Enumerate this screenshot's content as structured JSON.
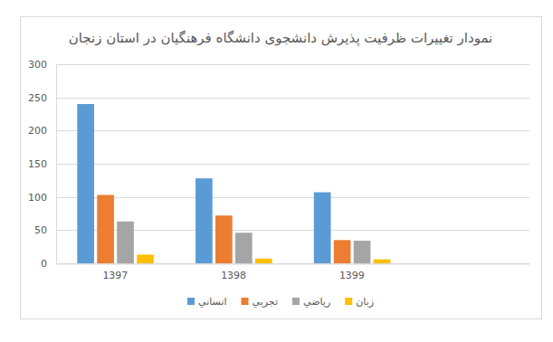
{
  "chart_data": {
    "type": "bar",
    "title": "نمودار تغییرات ظرفیت پذیرش دانشجوی دانشگاه فرهنگیان در استان زنجان",
    "categories": [
      "1397",
      "1398",
      "1399",
      null
    ],
    "series": [
      {
        "name": "انساني",
        "color": "#5b9bd5",
        "values": [
          240,
          128,
          107,
          null
        ]
      },
      {
        "name": "تجربي",
        "color": "#ed7d31",
        "values": [
          103,
          72,
          35,
          null
        ]
      },
      {
        "name": "رياضي",
        "color": "#a5a5a5",
        "values": [
          63,
          46,
          34,
          null
        ]
      },
      {
        "name": "زبان",
        "color": "#ffc000",
        "values": [
          13,
          7,
          6,
          null
        ]
      }
    ],
    "ylim": [
      0,
      300
    ],
    "yticks": [
      0,
      50,
      100,
      150,
      200,
      250,
      300
    ],
    "grid": true,
    "legend": "bottom"
  }
}
